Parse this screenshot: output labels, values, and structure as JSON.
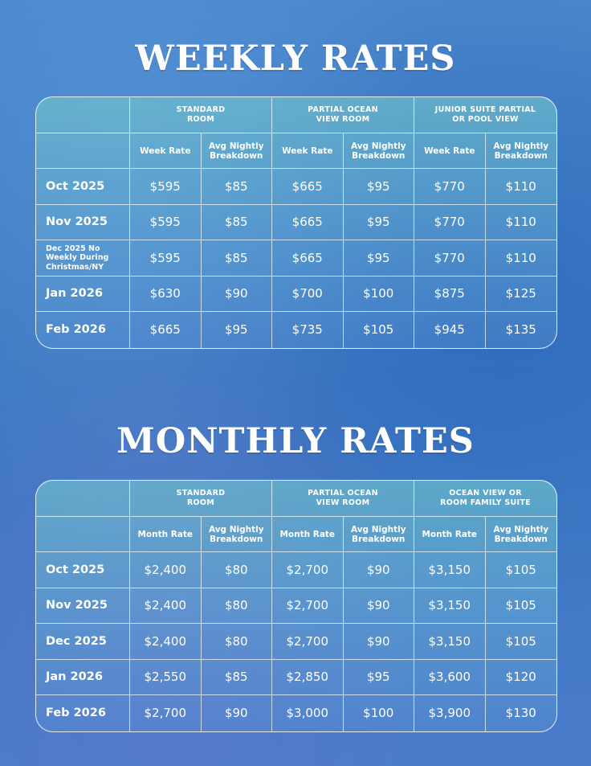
{
  "weekly": {
    "title": "WEEKLY RATES",
    "groups": [
      "STANDARD\nROOM",
      "PARTIAL OCEAN\nVIEW ROOM",
      "JUNIOR SUITE PARTIAL\nOR POOL VIEW"
    ],
    "subheaders": [
      "Week Rate",
      "Avg Nightly\nBreakdown",
      "Week Rate",
      "Avg Nightly\nBreakdown",
      "Week Rate",
      "Avg Nightly\nBreakdown"
    ],
    "rows": [
      {
        "month": "Oct 2025",
        "values": [
          "$595",
          "$85",
          "$665",
          "$95",
          "$770",
          "$110"
        ]
      },
      {
        "month": "Nov 2025",
        "values": [
          "$595",
          "$85",
          "$665",
          "$95",
          "$770",
          "$110"
        ]
      },
      {
        "month": "Dec 2025 No\nWeekly During\nChristmas/NY",
        "values": [
          "$595",
          "$85",
          "$665",
          "$95",
          "$770",
          "$110"
        ]
      },
      {
        "month": "Jan 2026",
        "values": [
          "$630",
          "$90",
          "$700",
          "$100",
          "$875",
          "$125"
        ]
      },
      {
        "month": "Feb 2026",
        "values": [
          "$665",
          "$95",
          "$735",
          "$105",
          "$945",
          "$135"
        ]
      }
    ]
  },
  "monthly": {
    "title": "MONTHLY RATES",
    "groups": [
      "STANDARD\nROOM",
      "PARTIAL OCEAN\nVIEW ROOM",
      "OCEAN VIEW OR\nROOM FAMILY SUITE"
    ],
    "subheaders": [
      "Month Rate",
      "Avg Nightly\nBreakdown",
      "Month Rate",
      "Avg Nightly\nBreakdown",
      "Month Rate",
      "Avg Nightly\nBreakdown"
    ],
    "rows": [
      {
        "month": "Oct 2025",
        "values": [
          "$2,400",
          "$80",
          "$2,700",
          "$90",
          "$3,150",
          "$105"
        ]
      },
      {
        "month": "Nov 2025",
        "values": [
          "$2,400",
          "$80",
          "$2,700",
          "$90",
          "$3,150",
          "$105"
        ]
      },
      {
        "month": "Dec 2025",
        "values": [
          "$2,400",
          "$80",
          "$2,700",
          "$90",
          "$3,150",
          "$105"
        ]
      },
      {
        "month": "Jan 2026",
        "values": [
          "$2,550",
          "$85",
          "$2,850",
          "$95",
          "$3,600",
          "$120"
        ]
      },
      {
        "month": "Feb 2026",
        "values": [
          "$2,700",
          "$90",
          "$3,000",
          "$100",
          "$3,900",
          "$130"
        ]
      }
    ]
  }
}
